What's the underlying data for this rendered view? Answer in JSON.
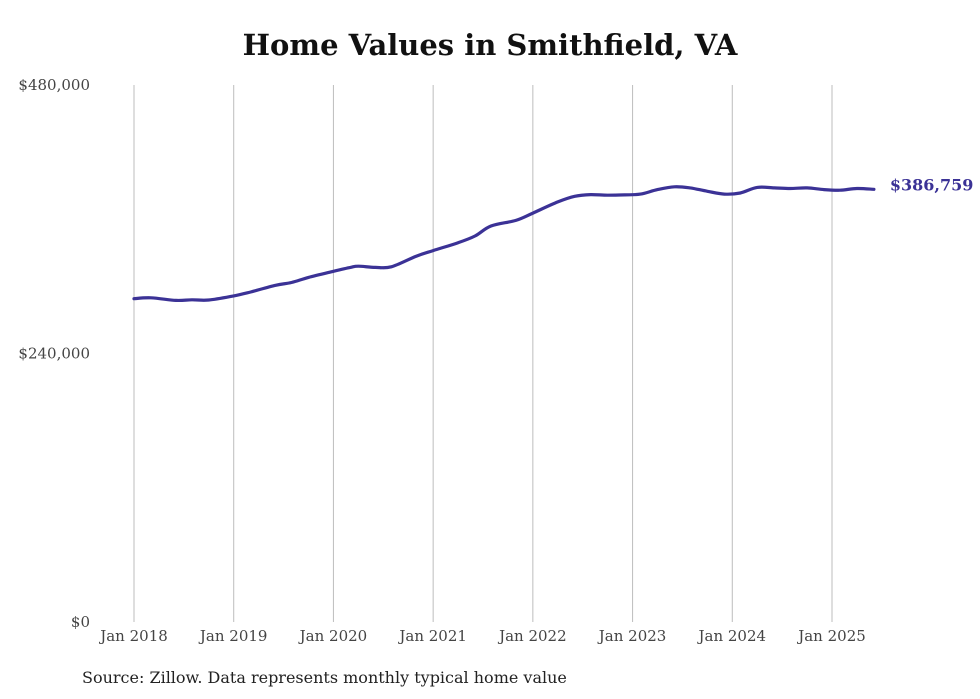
{
  "chart_data": {
    "type": "line",
    "title": "Home Values in Smithfield, VA",
    "xlabel": "",
    "ylabel": "",
    "ylim": [
      0,
      480000
    ],
    "y_ticks": [
      {
        "value": 0,
        "label": "$0"
      },
      {
        "value": 240000,
        "label": "$240,000"
      },
      {
        "value": 480000,
        "label": "$480,000"
      }
    ],
    "x_ticks": [
      {
        "value": 2018.0,
        "label": "Jan 2018"
      },
      {
        "value": 2019.0,
        "label": "Jan 2019"
      },
      {
        "value": 2020.0,
        "label": "Jan 2020"
      },
      {
        "value": 2021.0,
        "label": "Jan 2021"
      },
      {
        "value": 2022.0,
        "label": "Jan 2022"
      },
      {
        "value": 2023.0,
        "label": "Jan 2023"
      },
      {
        "value": 2024.0,
        "label": "Jan 2024"
      },
      {
        "value": 2025.0,
        "label": "Jan 2025"
      }
    ],
    "xlim": [
      2018.0,
      2025.42
    ],
    "grid": "vertical",
    "line_color": "#3b3296",
    "series": [
      {
        "end_label": "$386,759",
        "points": [
          [
            2018.0,
            289000
          ],
          [
            2018.17,
            289800
          ],
          [
            2018.42,
            287500
          ],
          [
            2018.58,
            288000
          ],
          [
            2018.75,
            287800
          ],
          [
            2019.0,
            291500
          ],
          [
            2019.17,
            295000
          ],
          [
            2019.42,
            301000
          ],
          [
            2019.58,
            303500
          ],
          [
            2019.75,
            308000
          ],
          [
            2020.0,
            313500
          ],
          [
            2020.17,
            317000
          ],
          [
            2020.25,
            318000
          ],
          [
            2020.42,
            317000
          ],
          [
            2020.58,
            317500
          ],
          [
            2020.83,
            327000
          ],
          [
            2021.0,
            332000
          ],
          [
            2021.25,
            339000
          ],
          [
            2021.42,
            345000
          ],
          [
            2021.58,
            354000
          ],
          [
            2021.83,
            359000
          ],
          [
            2022.0,
            365500
          ],
          [
            2022.25,
            375500
          ],
          [
            2022.42,
            380500
          ],
          [
            2022.58,
            382000
          ],
          [
            2022.75,
            381500
          ],
          [
            2022.92,
            381800
          ],
          [
            2023.08,
            382500
          ],
          [
            2023.25,
            386500
          ],
          [
            2023.42,
            389000
          ],
          [
            2023.58,
            388000
          ],
          [
            2023.75,
            385000
          ],
          [
            2023.92,
            382500
          ],
          [
            2024.08,
            383500
          ],
          [
            2024.25,
            388500
          ],
          [
            2024.42,
            388000
          ],
          [
            2024.58,
            387500
          ],
          [
            2024.75,
            388000
          ],
          [
            2024.92,
            386500
          ],
          [
            2025.08,
            386000
          ],
          [
            2025.25,
            387500
          ],
          [
            2025.42,
            386759
          ]
        ]
      }
    ]
  },
  "source_note": "Source: Zillow. Data represents monthly typical home value"
}
